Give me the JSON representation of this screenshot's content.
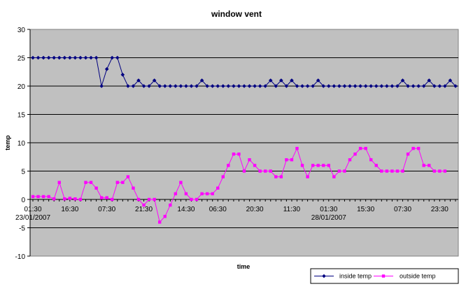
{
  "chart_data": {
    "type": "line",
    "title": "window vent",
    "xlabel": "time",
    "ylabel": "temp",
    "ylim": [
      -10,
      30
    ],
    "y_ticks": [
      -10,
      -5,
      0,
      5,
      10,
      15,
      20,
      25,
      30
    ],
    "grid": true,
    "legend_position": "bottom-right",
    "x_tick_labels": [
      "01:30",
      "16:30",
      "07:30",
      "21:30",
      "14:30",
      "06:30",
      "20:30",
      "11:30",
      "01:30",
      "15:30",
      "07:30",
      "23:30"
    ],
    "x_tick_indices": [
      0,
      7,
      14,
      21,
      29,
      35,
      42,
      49,
      56,
      63,
      70,
      77
    ],
    "date_labels": [
      {
        "text": "23/01/2007",
        "index": 0
      },
      {
        "text": "28/01/2007",
        "index": 56
      }
    ],
    "series": [
      {
        "name": "inside temp",
        "color": "#000080",
        "marker": "diamond",
        "values": [
          25,
          25,
          25,
          25,
          25,
          25,
          25,
          25,
          25,
          25,
          25,
          25,
          25,
          20,
          23,
          25,
          25,
          22,
          20,
          20,
          21,
          20,
          20,
          21,
          20,
          20,
          20,
          20,
          20,
          20,
          20,
          20,
          21,
          20,
          20,
          20,
          20,
          20,
          20,
          20,
          20,
          20,
          20,
          20,
          20,
          21,
          20,
          21,
          20,
          21,
          20,
          20,
          20,
          20,
          21,
          20,
          20,
          20,
          20,
          20,
          20,
          20,
          20,
          20,
          20,
          20,
          20,
          20,
          20,
          20,
          21,
          20,
          20,
          20,
          20,
          21,
          20,
          20,
          20,
          21,
          20
        ]
      },
      {
        "name": "outside temp",
        "color": "#ff00ff",
        "marker": "square",
        "values": [
          0.5,
          0.5,
          0.5,
          0.5,
          0.1,
          3,
          0.1,
          0.2,
          0.1,
          0,
          3,
          3,
          2,
          0.3,
          0.3,
          0,
          3,
          3,
          4,
          2,
          0,
          -1,
          0,
          0,
          -4,
          -3,
          -1,
          1,
          3,
          1,
          0,
          0,
          1,
          1,
          1,
          2,
          4,
          6,
          8,
          8,
          5,
          7,
          6,
          5,
          5,
          5,
          4,
          4,
          7,
          7,
          9,
          6,
          4,
          6,
          6,
          6,
          6,
          4,
          5,
          5,
          7,
          8,
          9,
          9,
          7,
          6,
          5,
          5,
          5,
          5,
          5,
          8,
          9,
          9,
          6,
          6,
          5,
          5,
          5
        ]
      }
    ]
  }
}
